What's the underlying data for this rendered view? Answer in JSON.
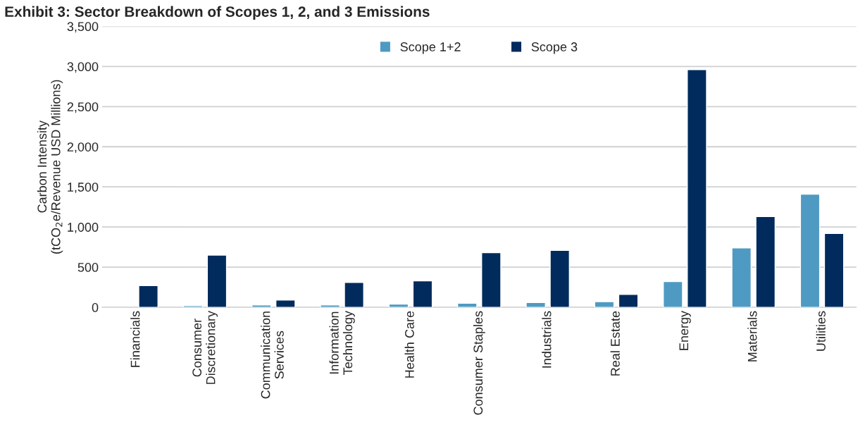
{
  "chart_data": {
    "type": "bar",
    "title": "Exhibit 3: Sector Breakdown of Scopes 1, 2, and 3 Emissions",
    "ylabel": "Carbon Intensity\n(tCO$_{2}$e/Revenue USD Millions)",
    "categories": [
      "Financials",
      "Consumer\nDiscretionary",
      "Communication\nServices",
      "Information\nTechnology",
      "Health Care",
      "Consumer Staples",
      "Industrials",
      "Real Estate",
      "Energy",
      "Materials",
      "Utilities"
    ],
    "series": [
      {
        "name": "Scope 1+2",
        "color": "#4f9ac2",
        "values": [
          null,
          20,
          30,
          30,
          40,
          50,
          60,
          70,
          320,
          740,
          1410
        ]
      },
      {
        "name": "Scope 3",
        "color": "#002b5c",
        "values": [
          270,
          650,
          90,
          310,
          330,
          680,
          710,
          160,
          2960,
          1130,
          920
        ]
      }
    ],
    "ylim": [
      0,
      3500
    ],
    "yticks": [
      {
        "value": 0,
        "label": "0"
      },
      {
        "value": 500,
        "label": "500"
      },
      {
        "value": 1000,
        "label": "1,000"
      },
      {
        "value": 1500,
        "label": "1,500"
      },
      {
        "value": 2000,
        "label": "2,000"
      },
      {
        "value": 2500,
        "label": "2,500"
      },
      {
        "value": 3000,
        "label": "3,000"
      },
      {
        "value": 3500,
        "label": "3,500"
      }
    ],
    "grid": "y",
    "legend": "top"
  }
}
